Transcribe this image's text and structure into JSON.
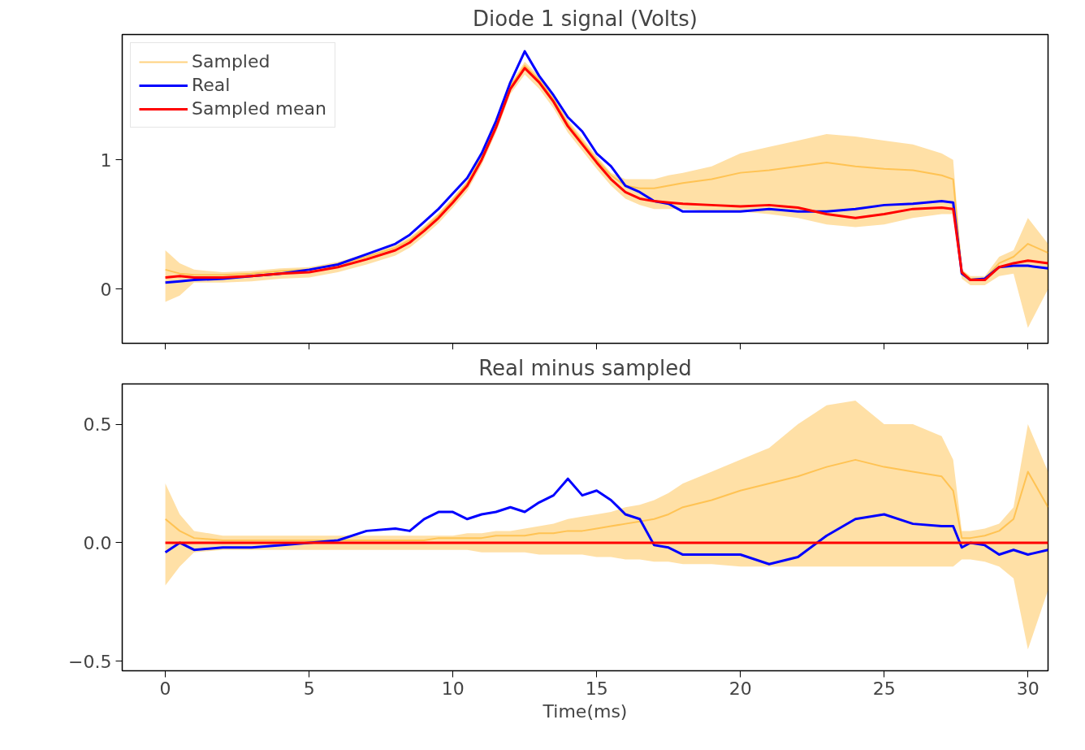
{
  "chart_data": [
    {
      "type": "line",
      "title": "Diode 1 signal (Volts)",
      "x": [
        0,
        0.5,
        1,
        2,
        3,
        4,
        5,
        6,
        7,
        8,
        8.5,
        9,
        9.5,
        10,
        10.5,
        11,
        11.5,
        12,
        12.5,
        13,
        13.5,
        14,
        14.5,
        15,
        15.5,
        16,
        16.5,
        17,
        17.5,
        18,
        19,
        20,
        21,
        22,
        23,
        24,
        25,
        26,
        27,
        27.4,
        27.7,
        28,
        28.5,
        29,
        29.5,
        30,
        30.7
      ],
      "xlim": [
        -1.5,
        30.7
      ],
      "xticks": [
        0,
        5,
        10,
        15,
        20,
        25,
        30
      ],
      "ylim": [
        -0.42,
        1.97
      ],
      "yticks": [
        0,
        1
      ],
      "tick_labels": "y",
      "grid": false,
      "legend": "top left",
      "line_style": "solid",
      "series": [
        {
          "name": "Sampled",
          "color": "#ffa500",
          "values": [
            0.15,
            0.12,
            0.11,
            0.11,
            0.12,
            0.14,
            0.15,
            0.19,
            0.25,
            0.32,
            0.38,
            0.47,
            0.57,
            0.69,
            0.82,
            1.02,
            1.27,
            1.57,
            1.73,
            1.62,
            1.47,
            1.28,
            1.14,
            1.0,
            0.88,
            0.8,
            0.78,
            0.78,
            0.8,
            0.82,
            0.85,
            0.9,
            0.92,
            0.95,
            0.98,
            0.95,
            0.93,
            0.92,
            0.88,
            0.85,
            0.14,
            0.08,
            0.08,
            0.2,
            0.25,
            0.35,
            0.28
          ],
          "lower": [
            -0.1,
            -0.05,
            0.05,
            0.05,
            0.06,
            0.08,
            0.09,
            0.13,
            0.19,
            0.26,
            0.32,
            0.41,
            0.51,
            0.63,
            0.76,
            0.96,
            1.21,
            1.51,
            1.66,
            1.55,
            1.4,
            1.21,
            1.07,
            0.93,
            0.8,
            0.7,
            0.65,
            0.62,
            0.62,
            0.62,
            0.6,
            0.6,
            0.58,
            0.55,
            0.5,
            0.48,
            0.5,
            0.55,
            0.58,
            0.58,
            0.08,
            0.03,
            0.03,
            0.1,
            0.12,
            -0.3,
            0.0
          ],
          "upper": [
            0.3,
            0.2,
            0.15,
            0.13,
            0.14,
            0.16,
            0.17,
            0.21,
            0.27,
            0.34,
            0.4,
            0.49,
            0.59,
            0.71,
            0.84,
            1.04,
            1.29,
            1.59,
            1.76,
            1.65,
            1.5,
            1.31,
            1.17,
            1.03,
            0.9,
            0.85,
            0.85,
            0.85,
            0.88,
            0.9,
            0.95,
            1.05,
            1.1,
            1.15,
            1.2,
            1.18,
            1.15,
            1.12,
            1.05,
            1.0,
            0.15,
            0.1,
            0.1,
            0.25,
            0.3,
            0.55,
            0.35
          ]
        },
        {
          "name": "Real",
          "color": "#0000ff",
          "values": [
            0.05,
            0.06,
            0.07,
            0.08,
            0.1,
            0.12,
            0.15,
            0.19,
            0.27,
            0.35,
            0.42,
            0.52,
            0.62,
            0.74,
            0.86,
            1.05,
            1.3,
            1.6,
            1.84,
            1.65,
            1.5,
            1.33,
            1.22,
            1.05,
            0.95,
            0.8,
            0.75,
            0.68,
            0.66,
            0.6,
            0.6,
            0.6,
            0.62,
            0.6,
            0.6,
            0.62,
            0.65,
            0.66,
            0.68,
            0.67,
            0.12,
            0.07,
            0.08,
            0.17,
            0.18,
            0.18,
            0.16
          ]
        },
        {
          "name": "Sampled mean",
          "color": "#ff0000",
          "values": [
            0.09,
            0.1,
            0.09,
            0.09,
            0.1,
            0.12,
            0.13,
            0.17,
            0.23,
            0.3,
            0.36,
            0.45,
            0.55,
            0.67,
            0.8,
            1.0,
            1.25,
            1.55,
            1.71,
            1.6,
            1.45,
            1.26,
            1.12,
            0.98,
            0.85,
            0.75,
            0.7,
            0.68,
            0.67,
            0.66,
            0.65,
            0.64,
            0.65,
            0.63,
            0.58,
            0.55,
            0.58,
            0.62,
            0.63,
            0.62,
            0.13,
            0.07,
            0.07,
            0.17,
            0.2,
            0.22,
            0.2
          ]
        }
      ]
    },
    {
      "type": "line",
      "title": "Real minus sampled",
      "xlabel": "Time(ms)",
      "x": [
        0,
        0.5,
        1,
        2,
        3,
        4,
        5,
        6,
        7,
        8,
        8.5,
        9,
        9.5,
        10,
        10.5,
        11,
        11.5,
        12,
        12.5,
        13,
        13.5,
        14,
        14.5,
        15,
        15.5,
        16,
        16.5,
        17,
        17.5,
        18,
        19,
        20,
        21,
        22,
        23,
        24,
        25,
        26,
        27,
        27.4,
        27.7,
        28,
        28.5,
        29,
        29.5,
        30,
        30.7
      ],
      "xlim": [
        -1.5,
        30.7
      ],
      "xticks": [
        0,
        5,
        10,
        15,
        20,
        25,
        30
      ],
      "ylim": [
        -0.54,
        0.67
      ],
      "yticks": [
        {
          "value": -0.5,
          "label": "−0.5"
        },
        {
          "value": 0,
          "label": "0.0"
        },
        {
          "value": 0.5,
          "label": "0.5"
        }
      ],
      "grid": false,
      "line_style": "solid",
      "series": [
        {
          "color": "#ffa500",
          "values": [
            0.1,
            0.05,
            0.02,
            0.01,
            0.01,
            0.01,
            0.01,
            0.01,
            0.01,
            0.01,
            0.01,
            0.01,
            0.02,
            0.02,
            0.02,
            0.02,
            0.03,
            0.03,
            0.03,
            0.04,
            0.04,
            0.05,
            0.05,
            0.06,
            0.07,
            0.08,
            0.09,
            0.1,
            0.12,
            0.15,
            0.18,
            0.22,
            0.25,
            0.28,
            0.32,
            0.35,
            0.32,
            0.3,
            0.28,
            0.22,
            0.02,
            0.02,
            0.03,
            0.05,
            0.1,
            0.3,
            0.15
          ],
          "lower": [
            -0.18,
            -0.1,
            -0.04,
            -0.03,
            -0.03,
            -0.03,
            -0.03,
            -0.03,
            -0.03,
            -0.03,
            -0.03,
            -0.03,
            -0.03,
            -0.03,
            -0.03,
            -0.04,
            -0.04,
            -0.04,
            -0.04,
            -0.05,
            -0.05,
            -0.05,
            -0.05,
            -0.06,
            -0.06,
            -0.07,
            -0.07,
            -0.08,
            -0.08,
            -0.09,
            -0.09,
            -0.1,
            -0.1,
            -0.1,
            -0.1,
            -0.1,
            -0.1,
            -0.1,
            -0.1,
            -0.1,
            -0.07,
            -0.07,
            -0.08,
            -0.1,
            -0.15,
            -0.45,
            -0.2
          ],
          "upper": [
            0.25,
            0.12,
            0.05,
            0.03,
            0.03,
            0.03,
            0.03,
            0.03,
            0.03,
            0.03,
            0.03,
            0.03,
            0.03,
            0.03,
            0.04,
            0.04,
            0.05,
            0.05,
            0.06,
            0.07,
            0.08,
            0.1,
            0.11,
            0.12,
            0.13,
            0.15,
            0.16,
            0.18,
            0.21,
            0.25,
            0.3,
            0.35,
            0.4,
            0.5,
            0.58,
            0.6,
            0.5,
            0.5,
            0.45,
            0.35,
            0.05,
            0.05,
            0.06,
            0.08,
            0.15,
            0.5,
            0.3
          ]
        },
        {
          "color": "#0000ff",
          "values": [
            -0.04,
            0.0,
            -0.03,
            -0.02,
            -0.02,
            -0.01,
            0.0,
            0.01,
            0.05,
            0.06,
            0.05,
            0.1,
            0.13,
            0.13,
            0.1,
            0.12,
            0.13,
            0.15,
            0.13,
            0.17,
            0.2,
            0.27,
            0.2,
            0.22,
            0.18,
            0.12,
            0.1,
            -0.01,
            -0.02,
            -0.05,
            -0.05,
            -0.05,
            -0.09,
            -0.06,
            0.03,
            0.1,
            0.12,
            0.08,
            0.07,
            0.07,
            -0.02,
            0.0,
            -0.01,
            -0.05,
            -0.03,
            -0.05,
            -0.03
          ]
        },
        {
          "color": "#ff0000",
          "values": [
            0,
            0,
            0,
            0,
            0,
            0,
            0,
            0,
            0,
            0,
            0,
            0,
            0,
            0,
            0,
            0,
            0,
            0,
            0,
            0,
            0,
            0,
            0,
            0,
            0,
            0,
            0,
            0,
            0,
            0,
            0,
            0,
            0,
            0,
            0,
            0,
            0,
            0,
            0,
            0,
            0,
            0,
            0,
            0,
            0,
            0,
            0
          ]
        }
      ]
    }
  ]
}
